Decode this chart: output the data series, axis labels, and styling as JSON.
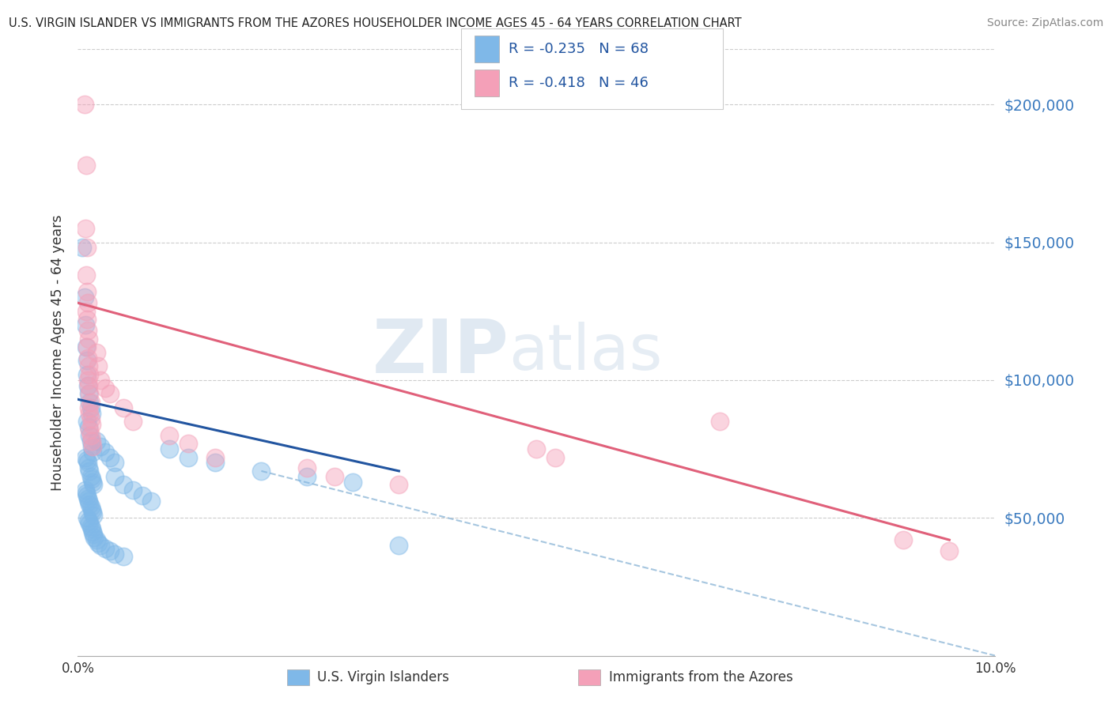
{
  "title": "U.S. VIRGIN ISLANDER VS IMMIGRANTS FROM THE AZORES HOUSEHOLDER INCOME AGES 45 - 64 YEARS CORRELATION CHART",
  "source": "Source: ZipAtlas.com",
  "ylabel": "Householder Income Ages 45 - 64 years",
  "xlim": [
    0.0,
    10.0
  ],
  "ylim": [
    0,
    220000
  ],
  "yticks": [
    50000,
    100000,
    150000,
    200000
  ],
  "ytick_labels": [
    "$50,000",
    "$100,000",
    "$150,000",
    "$200,000"
  ],
  "blue_color": "#7fb8e8",
  "pink_color": "#f4a0b8",
  "blue_line_color": "#2255a0",
  "pink_line_color": "#e0607a",
  "dashed_line_color": "#90b8d8",
  "blue_scatter": [
    [
      0.05,
      148000
    ],
    [
      0.07,
      130000
    ],
    [
      0.08,
      120000
    ],
    [
      0.09,
      112000
    ],
    [
      0.1,
      107000
    ],
    [
      0.1,
      102000
    ],
    [
      0.11,
      98000
    ],
    [
      0.12,
      95000
    ],
    [
      0.13,
      92000
    ],
    [
      0.14,
      90000
    ],
    [
      0.15,
      88000
    ],
    [
      0.1,
      85000
    ],
    [
      0.12,
      83000
    ],
    [
      0.13,
      80000
    ],
    [
      0.14,
      78000
    ],
    [
      0.15,
      76000
    ],
    [
      0.16,
      74000
    ],
    [
      0.08,
      72000
    ],
    [
      0.1,
      71000
    ],
    [
      0.11,
      70000
    ],
    [
      0.12,
      68000
    ],
    [
      0.13,
      67000
    ],
    [
      0.14,
      65000
    ],
    [
      0.15,
      64000
    ],
    [
      0.16,
      63000
    ],
    [
      0.17,
      62000
    ],
    [
      0.08,
      60000
    ],
    [
      0.09,
      59000
    ],
    [
      0.1,
      58000
    ],
    [
      0.11,
      57000
    ],
    [
      0.12,
      56000
    ],
    [
      0.13,
      55000
    ],
    [
      0.14,
      54000
    ],
    [
      0.15,
      53000
    ],
    [
      0.16,
      52000
    ],
    [
      0.17,
      51000
    ],
    [
      0.1,
      50000
    ],
    [
      0.12,
      49000
    ],
    [
      0.13,
      48000
    ],
    [
      0.14,
      47000
    ],
    [
      0.15,
      46000
    ],
    [
      0.16,
      45000
    ],
    [
      0.17,
      44000
    ],
    [
      0.18,
      43000
    ],
    [
      0.2,
      42000
    ],
    [
      0.22,
      41000
    ],
    [
      0.25,
      40000
    ],
    [
      0.3,
      39000
    ],
    [
      0.35,
      38000
    ],
    [
      0.4,
      37000
    ],
    [
      0.5,
      36000
    ],
    [
      0.2,
      78000
    ],
    [
      0.25,
      76000
    ],
    [
      0.3,
      74000
    ],
    [
      0.35,
      72000
    ],
    [
      0.4,
      70000
    ],
    [
      0.4,
      65000
    ],
    [
      0.5,
      62000
    ],
    [
      0.6,
      60000
    ],
    [
      0.7,
      58000
    ],
    [
      0.8,
      56000
    ],
    [
      1.0,
      75000
    ],
    [
      1.2,
      72000
    ],
    [
      1.5,
      70000
    ],
    [
      2.0,
      67000
    ],
    [
      2.5,
      65000
    ],
    [
      3.0,
      63000
    ],
    [
      3.5,
      40000
    ]
  ],
  "pink_scatter": [
    [
      0.07,
      200000
    ],
    [
      0.09,
      178000
    ],
    [
      0.08,
      155000
    ],
    [
      0.1,
      148000
    ],
    [
      0.09,
      138000
    ],
    [
      0.1,
      132000
    ],
    [
      0.11,
      128000
    ],
    [
      0.09,
      125000
    ],
    [
      0.1,
      122000
    ],
    [
      0.11,
      118000
    ],
    [
      0.12,
      115000
    ],
    [
      0.1,
      112000
    ],
    [
      0.11,
      108000
    ],
    [
      0.12,
      105000
    ],
    [
      0.13,
      102000
    ],
    [
      0.11,
      100000
    ],
    [
      0.12,
      98000
    ],
    [
      0.13,
      95000
    ],
    [
      0.14,
      92000
    ],
    [
      0.12,
      90000
    ],
    [
      0.13,
      88000
    ],
    [
      0.14,
      86000
    ],
    [
      0.15,
      84000
    ],
    [
      0.13,
      82000
    ],
    [
      0.14,
      80000
    ],
    [
      0.15,
      78000
    ],
    [
      0.16,
      76000
    ],
    [
      0.2,
      110000
    ],
    [
      0.22,
      105000
    ],
    [
      0.25,
      100000
    ],
    [
      0.3,
      97000
    ],
    [
      0.35,
      95000
    ],
    [
      0.5,
      90000
    ],
    [
      0.6,
      85000
    ],
    [
      1.0,
      80000
    ],
    [
      1.2,
      77000
    ],
    [
      1.5,
      72000
    ],
    [
      2.5,
      68000
    ],
    [
      2.8,
      65000
    ],
    [
      3.5,
      62000
    ],
    [
      5.0,
      75000
    ],
    [
      5.2,
      72000
    ],
    [
      7.0,
      85000
    ],
    [
      9.0,
      42000
    ],
    [
      9.5,
      38000
    ]
  ],
  "blue_line": {
    "x0": 0.0,
    "y0": 93000,
    "x1": 3.5,
    "y1": 67000
  },
  "pink_line": {
    "x0": 0.0,
    "y0": 128000,
    "x1": 9.5,
    "y1": 42000
  },
  "dashed_line": {
    "x0": 2.0,
    "y0": 67000,
    "x1": 10.0,
    "y1": 0
  }
}
